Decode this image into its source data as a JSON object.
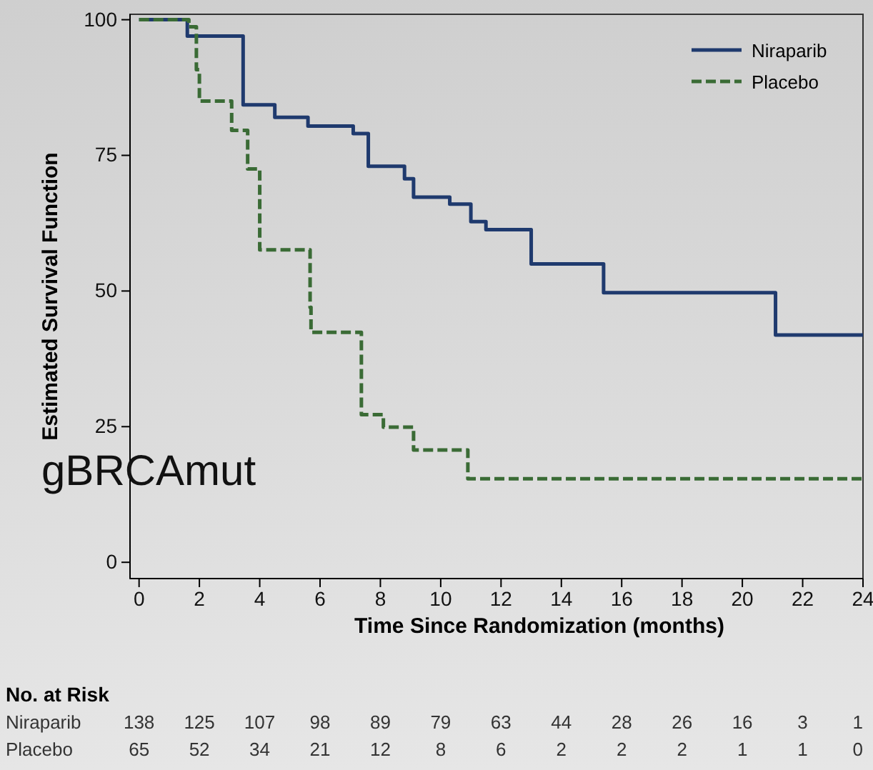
{
  "chart_data": {
    "type": "step",
    "xlabel": "Time Since Randomization (months)",
    "ylabel": "Estimated Survival Function",
    "xlim": [
      -0.3,
      24
    ],
    "xticks": [
      0,
      2,
      4,
      6,
      8,
      10,
      12,
      14,
      16,
      18,
      20,
      22,
      24
    ],
    "ylim": [
      -3,
      101
    ],
    "yticks": [
      0,
      25,
      50,
      75,
      100
    ],
    "grid": false,
    "legend": "top right",
    "series": [
      {
        "name": "Niraparib",
        "color": "#1f3a6e",
        "line_style": "solid",
        "x": [
          0,
          1.6,
          3.45,
          4.5,
          5.6,
          7.1,
          7.6,
          8.8,
          9.1,
          10.3,
          11,
          11.5,
          13,
          15.4,
          20.8,
          21.1,
          24
        ],
        "values": [
          100,
          97,
          84.3,
          82,
          80.4,
          79,
          73,
          70.7,
          67.3,
          66,
          62.8,
          61.3,
          55,
          49.7,
          49.7,
          41.9,
          41.9
        ]
      },
      {
        "name": "Placebo",
        "color": "#3a6b35",
        "line_style": "dashed",
        "x": [
          0,
          1.65,
          1.9,
          2.0,
          2.65,
          3.07,
          3.6,
          4.0,
          5.1,
          5.67,
          5.7,
          7.0,
          7.37,
          8.1,
          9.1,
          10.9,
          24
        ],
        "values": [
          100,
          98.7,
          90.8,
          85,
          85,
          79.6,
          72.5,
          57.6,
          57.6,
          47,
          42.4,
          42.4,
          27.2,
          24.9,
          20.7,
          15.4,
          15.4
        ]
      }
    ],
    "annotations": [
      "gBRCAmut",
      "No. at Risk",
      "Niraparib",
      "138",
      "125",
      "107",
      "98",
      "89",
      "79",
      "63",
      "44",
      "28",
      "26",
      "16",
      "3",
      "1",
      "Placebo",
      "65",
      "52",
      "34",
      "21",
      "12",
      "8",
      "6",
      "2",
      "2",
      "2",
      "1",
      "1",
      "0"
    ]
  }
}
